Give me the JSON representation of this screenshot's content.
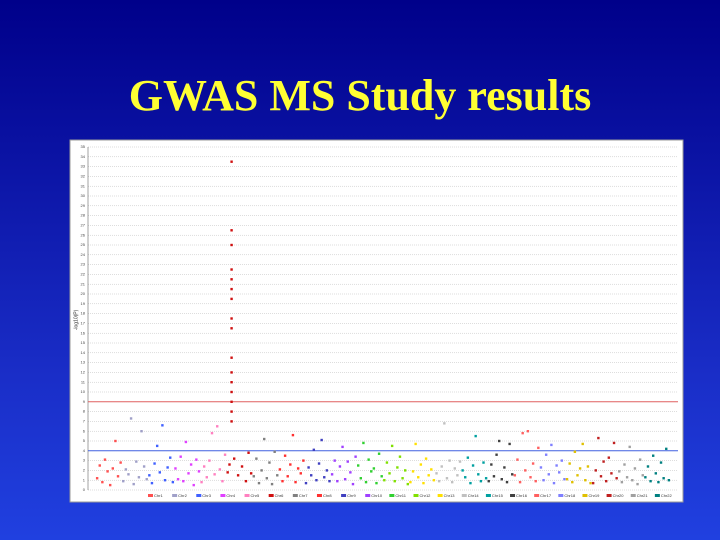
{
  "chart_data": {
    "type": "scatter",
    "title": "GWAS MS Study results",
    "y_label": "-log10(P)",
    "xlim": [
      -0.3,
      22.3
    ],
    "ylim": [
      0,
      35
    ],
    "yticks": [
      0,
      1,
      2,
      3,
      4,
      5,
      6,
      7,
      8,
      9,
      10,
      11,
      12,
      13,
      14,
      15,
      16,
      17,
      18,
      19,
      20,
      21,
      22,
      23,
      24,
      25,
      26,
      27,
      28,
      29,
      30,
      31,
      32,
      33,
      34,
      35
    ],
    "grid": true,
    "reference_lines": [
      {
        "value": 9,
        "color": "#e06060"
      },
      {
        "value": 4,
        "color": "#4060e0"
      }
    ],
    "series": [
      {
        "name": "Chr1",
        "color": "#ff5050",
        "x": [
          0.05,
          0.15,
          0.25,
          0.35,
          0.45,
          0.55,
          0.65,
          0.75,
          0.85,
          0.95
        ],
        "values": [
          1.2,
          2.5,
          0.8,
          3.1,
          1.9,
          0.5,
          2.2,
          5,
          1.4,
          2.8
        ]
      },
      {
        "name": "Chr2",
        "color": "#a0a0c8",
        "x": [
          1.05,
          1.15,
          1.25,
          1.35,
          1.45,
          1.55,
          1.65,
          1.75,
          1.85,
          1.95
        ],
        "values": [
          0.9,
          2.1,
          1.6,
          7.3,
          0.6,
          2.9,
          1.3,
          6,
          2.4,
          1.1
        ]
      },
      {
        "name": "Chr3",
        "color": "#4060ff",
        "x": [
          2.05,
          2.15,
          2.25,
          2.35,
          2.45,
          2.55,
          2.65,
          2.75,
          2.85,
          2.95
        ],
        "values": [
          1.5,
          0.7,
          2.7,
          4.5,
          1.8,
          6.6,
          1.0,
          2.3,
          3.3,
          0.8
        ]
      },
      {
        "name": "Chr4",
        "color": "#e040ff",
        "x": [
          3.05,
          3.15,
          3.25,
          3.35,
          3.45,
          3.55,
          3.65,
          3.75,
          3.85,
          3.95
        ],
        "values": [
          2.2,
          1.1,
          3.4,
          0.9,
          4.9,
          1.7,
          2.6,
          0.5,
          3.1,
          1.9
        ]
      },
      {
        "name": "Chr5",
        "color": "#ff80c0",
        "x": [
          4.05,
          4.15,
          4.25,
          4.35,
          4.45,
          4.55,
          4.65,
          4.75,
          4.85,
          4.95
        ],
        "values": [
          0.8,
          2.4,
          1.3,
          3.0,
          5.8,
          1.6,
          6.5,
          2.1,
          0.9,
          3.6
        ]
      },
      {
        "name": "Chr6",
        "color": "#d01010",
        "x": [
          5.05,
          5.12,
          5.2,
          5.2,
          5.2,
          5.2,
          5.2,
          5.2,
          5.2,
          5.2,
          5.2,
          5.2,
          5.2,
          5.2,
          5.2,
          5.2,
          5.2,
          5.2,
          5.3,
          5.45,
          5.6,
          5.75,
          5.85,
          5.95
        ],
        "values": [
          1.8,
          2.6,
          33.5,
          26.5,
          25,
          22.5,
          21.5,
          20.5,
          19.5,
          17.5,
          16.5,
          13.5,
          12,
          11,
          10,
          9,
          8,
          7,
          3.2,
          1.5,
          2.4,
          0.9,
          3.8,
          1.7
        ]
      },
      {
        "name": "Chr7",
        "color": "#808080",
        "x": [
          6.05,
          6.15,
          6.25,
          6.35,
          6.45,
          6.55,
          6.65,
          6.75,
          6.85,
          6.95
        ],
        "values": [
          1.4,
          3.2,
          0.7,
          2.0,
          5.2,
          1.2,
          2.8,
          0.6,
          3.9,
          1.5
        ]
      },
      {
        "name": "Chr8",
        "color": "#ff3030",
        "x": [
          7.05,
          7.15,
          7.25,
          7.35,
          7.45,
          7.55,
          7.65,
          7.75,
          7.85,
          7.95
        ],
        "values": [
          2.1,
          0.9,
          3.5,
          1.4,
          2.6,
          5.6,
          0.8,
          2.2,
          1.7,
          3.0
        ]
      },
      {
        "name": "Chr9",
        "color": "#4040c0",
        "x": [
          8.05,
          8.15,
          8.25,
          8.35,
          8.45,
          8.55,
          8.65,
          8.75,
          8.85,
          8.95
        ],
        "values": [
          0.7,
          2.3,
          1.5,
          4.1,
          1.0,
          2.7,
          5.1,
          1.3,
          2.0,
          0.9
        ]
      },
      {
        "name": "Chr10",
        "color": "#a040ff",
        "x": [
          9.05,
          9.15,
          9.25,
          9.35,
          9.45,
          9.55,
          9.65,
          9.75,
          9.85,
          9.95
        ],
        "values": [
          1.6,
          3.0,
          0.9,
          2.4,
          4.4,
          1.1,
          2.9,
          1.8,
          0.6,
          3.4
        ]
      },
      {
        "name": "Chr11",
        "color": "#30d030",
        "x": [
          10.05,
          10.15,
          10.25,
          10.35,
          10.45,
          10.55,
          10.65,
          10.75,
          10.85,
          10.95
        ],
        "values": [
          2.5,
          1.2,
          4.8,
          0.8,
          3.1,
          1.9,
          2.2,
          0.7,
          3.7,
          1.4
        ]
      },
      {
        "name": "Chr12",
        "color": "#80e000",
        "x": [
          11.05,
          11.15,
          11.25,
          11.35,
          11.45,
          11.55,
          11.65,
          11.75,
          11.85,
          11.95
        ],
        "values": [
          1.0,
          2.8,
          1.7,
          4.5,
          0.9,
          2.3,
          3.4,
          1.2,
          2.0,
          0.6
        ]
      },
      {
        "name": "Chr13",
        "color": "#ffe000",
        "x": [
          12.05,
          12.15,
          12.25,
          12.35,
          12.45,
          12.55,
          12.65,
          12.75,
          12.85,
          12.95
        ],
        "values": [
          0.8,
          1.9,
          4.7,
          1.3,
          2.6,
          0.7,
          3.2,
          1.5,
          2.1,
          1.0
        ]
      },
      {
        "name": "Chr14",
        "color": "#c0c0c0",
        "x": [
          13.05,
          13.15,
          13.25,
          13.35,
          13.45,
          13.55,
          13.65,
          13.75,
          13.85,
          13.95
        ],
        "values": [
          1.7,
          0.9,
          2.4,
          6.8,
          1.2,
          3.0,
          0.8,
          2.2,
          1.5,
          2.9
        ]
      },
      {
        "name": "Chr15",
        "color": "#00a0a0",
        "x": [
          14.05,
          14.15,
          14.25,
          14.35,
          14.45,
          14.55,
          14.65,
          14.75,
          14.85,
          14.95
        ],
        "values": [
          2.0,
          1.3,
          3.3,
          0.7,
          2.5,
          5.5,
          1.6,
          0.9,
          2.8,
          1.2
        ]
      },
      {
        "name": "Chr16",
        "color": "#404040",
        "x": [
          15.05,
          15.15,
          15.25,
          15.35,
          15.45,
          15.55,
          15.65,
          15.75,
          15.85,
          15.95
        ],
        "values": [
          0.9,
          2.6,
          1.4,
          3.6,
          5.0,
          1.1,
          2.3,
          0.8,
          4.7,
          1.6
        ]
      },
      {
        "name": "Chr17",
        "color": "#ff6060",
        "x": [
          16.05,
          16.15,
          16.25,
          16.35,
          16.45,
          16.55,
          16.65,
          16.75,
          16.85,
          16.95
        ],
        "values": [
          1.5,
          3.1,
          0.8,
          5.8,
          2.0,
          6.0,
          1.3,
          2.7,
          0.9,
          4.3
        ]
      },
      {
        "name": "Chr18",
        "color": "#8080ff",
        "x": [
          17.05,
          17.15,
          17.25,
          17.35,
          17.45,
          17.55,
          17.65,
          17.75,
          17.85,
          17.95
        ],
        "values": [
          2.3,
          1.0,
          3.6,
          1.6,
          4.6,
          0.7,
          2.5,
          1.8,
          3.0,
          1.1
        ]
      },
      {
        "name": "Chr19",
        "color": "#e0c000",
        "x": [
          18.05,
          18.15,
          18.25,
          18.35,
          18.45,
          18.55,
          18.65,
          18.75,
          18.85,
          18.95
        ],
        "values": [
          1.1,
          2.7,
          0.8,
          3.9,
          1.5,
          2.2,
          4.7,
          1.0,
          2.4,
          0.7
        ]
      },
      {
        "name": "Chr20",
        "color": "#c02020",
        "x": [
          19.05,
          19.15,
          19.25,
          19.35,
          19.45,
          19.55,
          19.65,
          19.75,
          19.85,
          19.95
        ],
        "values": [
          0.7,
          2.0,
          5.3,
          1.4,
          2.9,
          0.9,
          3.3,
          1.7,
          4.8,
          1.2
        ]
      },
      {
        "name": "Chr21",
        "color": "#a0a0a0",
        "x": [
          20.05,
          20.15,
          20.25,
          20.35,
          20.45,
          20.55,
          20.65,
          20.75,
          20.85,
          20.95
        ],
        "values": [
          1.9,
          0.8,
          2.6,
          1.3,
          4.4,
          1.0,
          2.2,
          0.6,
          3.1,
          1.5
        ]
      },
      {
        "name": "Chr22",
        "color": "#008080",
        "x": [
          21.05,
          21.15,
          21.25,
          21.35,
          21.45,
          21.55,
          21.65,
          21.75,
          21.85,
          21.95
        ],
        "values": [
          1.3,
          2.4,
          0.9,
          3.5,
          1.7,
          0.8,
          2.8,
          1.2,
          4.2,
          1.0
        ]
      }
    ]
  }
}
